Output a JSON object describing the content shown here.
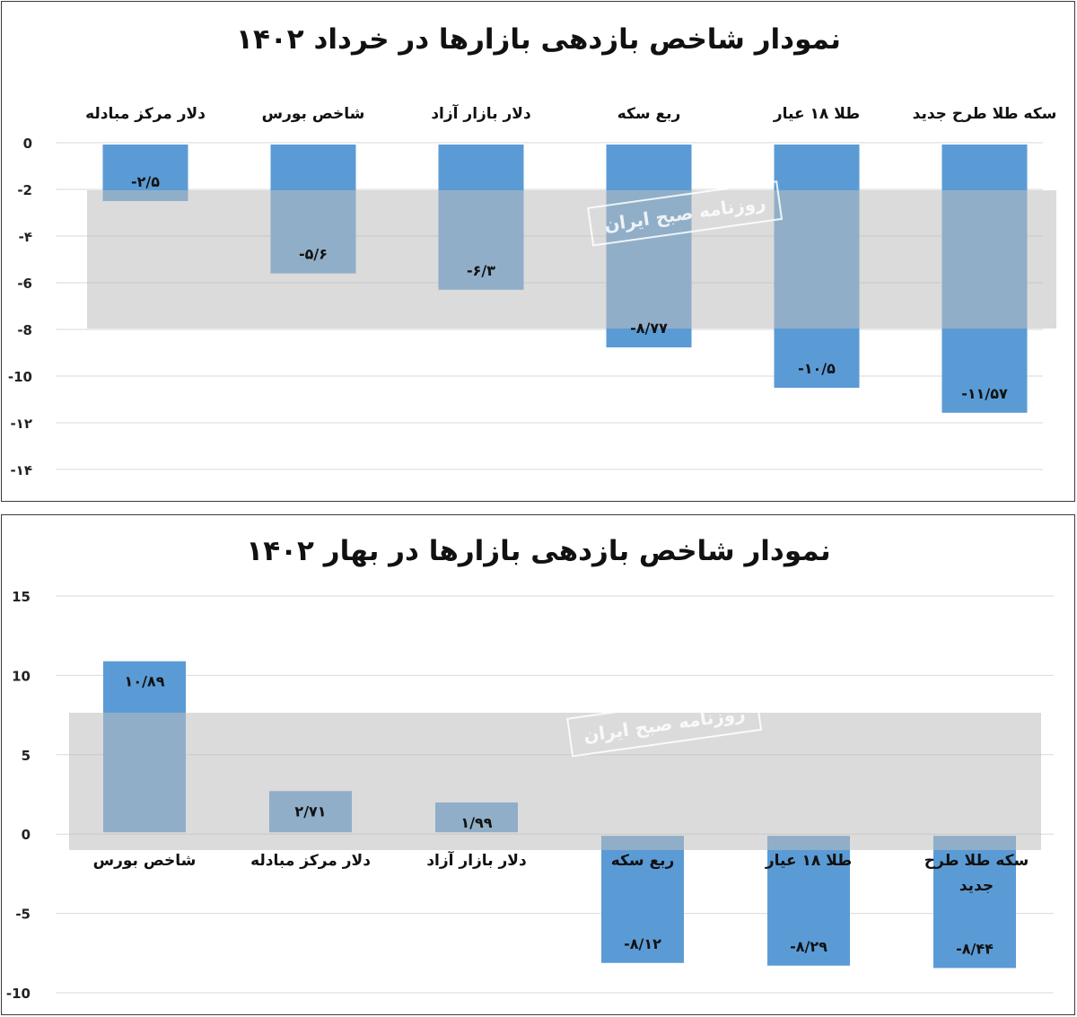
{
  "colors": {
    "bar": "#5b9bd5",
    "band": "#bdbdbd",
    "grid": "#d9d9d9"
  },
  "watermark": {
    "text": "روزنامه صبح ایران"
  },
  "chart_data": [
    {
      "type": "bar",
      "title": "نمودار شاخص بازدهی بازارها در خرداد ۱۴۰۲",
      "categories": [
        "سکه طلا طرح جدید",
        "طلا ۱۸ عیار",
        "ربع سکه",
        "دلار بازار آزاد",
        "شاخص بورس",
        "دلار مرکز مبادله"
      ],
      "values": [
        -11.57,
        -10.5,
        -8.77,
        -6.3,
        -5.6,
        -2.5
      ],
      "value_labels": [
        "-۱۱/۵۷",
        "-۱۰/۵",
        "-۸/۷۷",
        "-۶/۳",
        "-۵/۶",
        "-۲/۵"
      ],
      "ylim": [
        -14,
        0
      ],
      "yticks": [
        0,
        -2,
        -4,
        -6,
        -8,
        -10,
        -12,
        -14
      ],
      "ytick_labels": [
        "0",
        "-2",
        "-۴",
        "-6",
        "-8",
        "-10",
        "-۱۲",
        "-۱۴"
      ],
      "category_label_position": "top",
      "grid": true,
      "xlabel": "",
      "ylabel": ""
    },
    {
      "type": "bar",
      "title": "نمودار شاخص بازدهی بازارها در بهار ۱۴۰۲",
      "categories": [
        "شاخص بورس",
        "دلار مرکز مبادله",
        "دلار بازار آزاد",
        "ربع سکه",
        "طلا ۱۸ عیار",
        "سکه طلا طرح جدید"
      ],
      "values": [
        10.89,
        2.71,
        1.99,
        -8.12,
        -8.29,
        -8.44
      ],
      "value_labels": [
        "۱۰/۸۹",
        "۲/۷۱",
        "۱/۹۹",
        "-۸/۱۲",
        "-۸/۲۹",
        "-۸/۴۴"
      ],
      "ylim": [
        -10,
        15
      ],
      "yticks": [
        15,
        10,
        5,
        0,
        -5,
        -10
      ],
      "ytick_labels": [
        "15",
        "10",
        "5",
        "0",
        "-5",
        "-10"
      ],
      "category_label_position": "below-zero",
      "grid": true,
      "xlabel": "",
      "ylabel": ""
    }
  ]
}
